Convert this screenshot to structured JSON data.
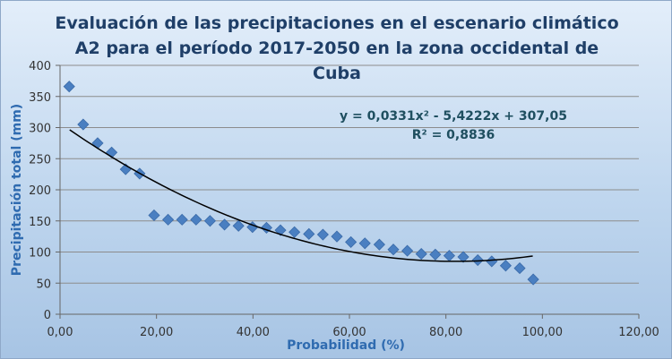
{
  "chart_data": {
    "type": "scatter",
    "title_lines": [
      "Evaluación de las precipitaciones en el escenario climático",
      "A2 para el período 2017-2050 en la zona occidental de",
      "Cuba"
    ],
    "xlabel": "Probabilidad (%)",
    "ylabel": "Precipitación total (mm)",
    "xlim": [
      0,
      120
    ],
    "ylim": [
      0,
      400
    ],
    "x_ticks": [
      "0,00",
      "20,00",
      "40,00",
      "60,00",
      "80,00",
      "100,00",
      "120,00"
    ],
    "y_ticks": [
      "0",
      "50",
      "100",
      "150",
      "200",
      "250",
      "300",
      "350",
      "400"
    ],
    "grid": "horizontal",
    "marker_color": "#4a7fc1",
    "trendline": {
      "type": "polynomial",
      "coefficients": [
        0.0331,
        -5.4222,
        307.05
      ],
      "x_range": [
        2,
        98
      ],
      "color": "#000000",
      "equation": "y = 0,0331x² - 5,4222x + 307,05",
      "r2": "R² = 0,8836"
    },
    "series": [
      {
        "points": [
          [
            1.9,
            366
          ],
          [
            4.8,
            305
          ],
          [
            7.8,
            275
          ],
          [
            10.7,
            260
          ],
          [
            13.6,
            233
          ],
          [
            16.5,
            226
          ],
          [
            19.5,
            159
          ],
          [
            22.4,
            152
          ],
          [
            25.3,
            152
          ],
          [
            28.2,
            152
          ],
          [
            31.1,
            150
          ],
          [
            34.1,
            144
          ],
          [
            37.0,
            142
          ],
          [
            39.9,
            140
          ],
          [
            42.8,
            139
          ],
          [
            45.7,
            135
          ],
          [
            48.6,
            132
          ],
          [
            51.6,
            129
          ],
          [
            54.5,
            128
          ],
          [
            57.4,
            125
          ],
          [
            60.3,
            116
          ],
          [
            63.2,
            114
          ],
          [
            66.2,
            112
          ],
          [
            69.1,
            104
          ],
          [
            72.0,
            102
          ],
          [
            74.9,
            97
          ],
          [
            77.8,
            96
          ],
          [
            80.7,
            94
          ],
          [
            83.6,
            92
          ],
          [
            86.6,
            87
          ],
          [
            89.5,
            85
          ],
          [
            92.4,
            78
          ],
          [
            95.3,
            74
          ],
          [
            98.1,
            56
          ]
        ]
      }
    ]
  }
}
